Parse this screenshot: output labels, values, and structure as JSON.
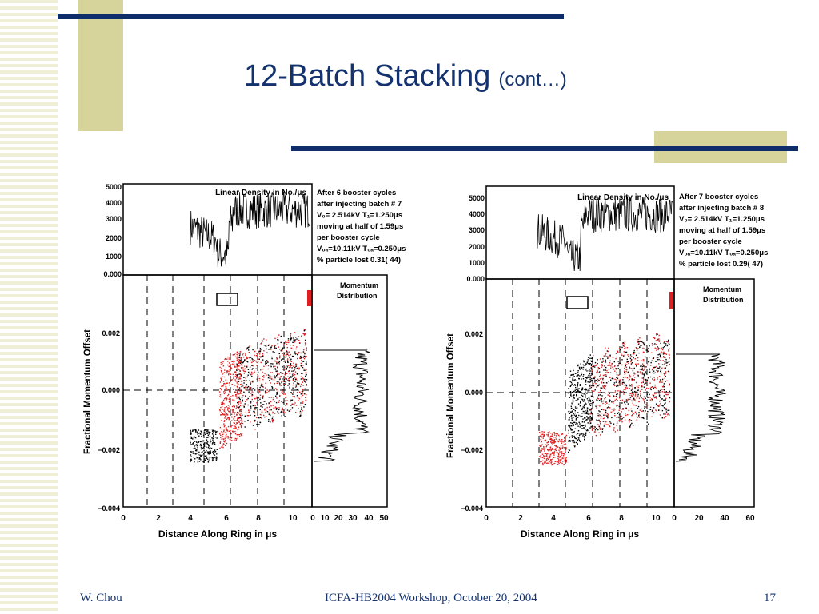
{
  "slide": {
    "title": "12-Batch Stacking",
    "title_suffix": "(cont…)",
    "colors": {
      "title": "#14336e",
      "bar": "#0f2c6b",
      "accent": "#d6d49a",
      "stripe": "#efefd6"
    }
  },
  "footer": {
    "author": "W. Chou",
    "event": "ICFA-HB2004 Workshop, October 20, 2004",
    "page": "17"
  },
  "plots": [
    {
      "density_title": "Linear Density in No./μs",
      "density_ticks": [
        "5000",
        "4000",
        "3000",
        "2000",
        "1000",
        "0.000"
      ],
      "info_lines": [
        "After 6 booster cycles",
        "after injecting batch # 7",
        "V₀= 2.514kV T₁=1.250μs",
        "moving at half of 1.59μs",
        "per booster cycle",
        "V₀ₐ=10.11kV T₀ₐ=0.250μs",
        "% particle lost 0.31( 44)"
      ],
      "y_label": "Fractional Momentum Offset",
      "y_ticks": [
        "0.002",
        "0.000",
        "−0.002",
        "−0.004"
      ],
      "x_label": "Distance Along Ring in μs",
      "x_ticks": [
        "0",
        "2",
        "4",
        "6",
        "8",
        "10"
      ],
      "dist_title": [
        "Momentum",
        "Distribution"
      ],
      "dist_ticks": [
        "0",
        "10",
        "20",
        "30",
        "40",
        "50"
      ]
    },
    {
      "density_title": "Linear Density in No./μs",
      "density_ticks": [
        "5000",
        "4000",
        "3000",
        "2000",
        "1000",
        "0.000"
      ],
      "info_lines": [
        "After 7 booster cycles",
        "after injecting batch # 8",
        "V₀= 2.514kV T₁=1.250μs",
        "moving at half of 1.59μs",
        "per booster cycle",
        "V₀ₐ=10.11kV T₀ₐ=0.250μs",
        "% particle lost 0.29( 47)"
      ],
      "y_label": "Fractional Momentum Offset",
      "y_ticks": [
        "0.002",
        "0.000",
        "−0.002",
        "−0.004"
      ],
      "x_label": "Distance Along Ring in μs",
      "x_ticks": [
        "0",
        "2",
        "4",
        "6",
        "8",
        "10"
      ],
      "dist_title": [
        "Momentum",
        "Distribution"
      ],
      "dist_ticks": [
        "0",
        "20",
        "40",
        "60"
      ]
    }
  ]
}
